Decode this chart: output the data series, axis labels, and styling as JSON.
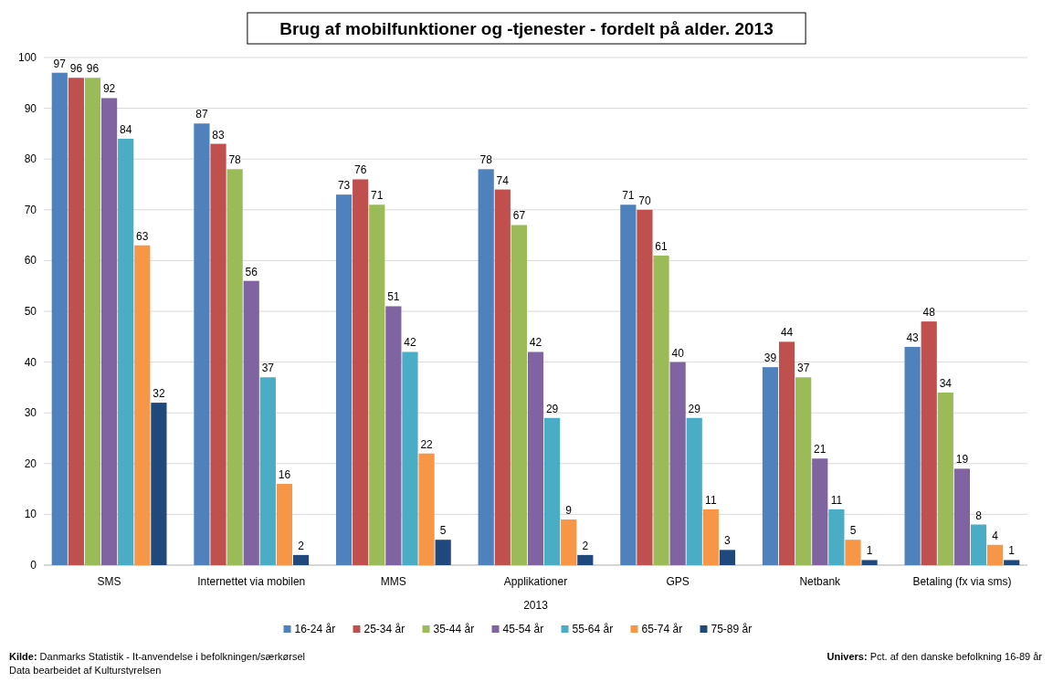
{
  "chart_data": {
    "type": "bar",
    "title": "Brug af mobilfunktioner og -tjenester - fordelt på alder. 2013",
    "xlabel": "2013",
    "categories": [
      "SMS",
      "Internettet via mobilen",
      "MMS",
      "Applikationer",
      "GPS",
      "Netbank",
      "Betaling (fx via sms)"
    ],
    "series": [
      {
        "name": "16-24 år",
        "color": "#4f81bd",
        "values": [
          97,
          87,
          73,
          78,
          71,
          39,
          43
        ]
      },
      {
        "name": "25-34 år",
        "color": "#c0504d",
        "values": [
          96,
          83,
          76,
          74,
          70,
          44,
          48
        ]
      },
      {
        "name": "35-44 år",
        "color": "#9bbb59",
        "values": [
          96,
          78,
          71,
          67,
          61,
          37,
          34
        ]
      },
      {
        "name": "45-54 år",
        "color": "#8064a2",
        "values": [
          92,
          56,
          51,
          42,
          40,
          21,
          19
        ]
      },
      {
        "name": "55-64 år",
        "color": "#4bacc6",
        "values": [
          84,
          37,
          42,
          29,
          29,
          11,
          8
        ]
      },
      {
        "name": "65-74 år",
        "color": "#f79646",
        "values": [
          63,
          16,
          22,
          9,
          11,
          5,
          4
        ]
      },
      {
        "name": "75-89 år",
        "color": "#1f497d",
        "values": [
          32,
          2,
          5,
          2,
          3,
          1,
          1
        ]
      }
    ],
    "ylim": [
      0,
      100
    ],
    "yticks": [
      0,
      10,
      20,
      30,
      40,
      50,
      60,
      70,
      80,
      90,
      100
    ],
    "grid": "y",
    "legend": "bottom",
    "data_labels": true,
    "annotations": [
      "Kilde: Danmarks Statistik - It-anvendelse i befolkningen/særkørsel",
      "Data bearbeidet af Kulturstyrelsen",
      "Univers: Pct. af den danske befolkning 16-89 år"
    ]
  }
}
